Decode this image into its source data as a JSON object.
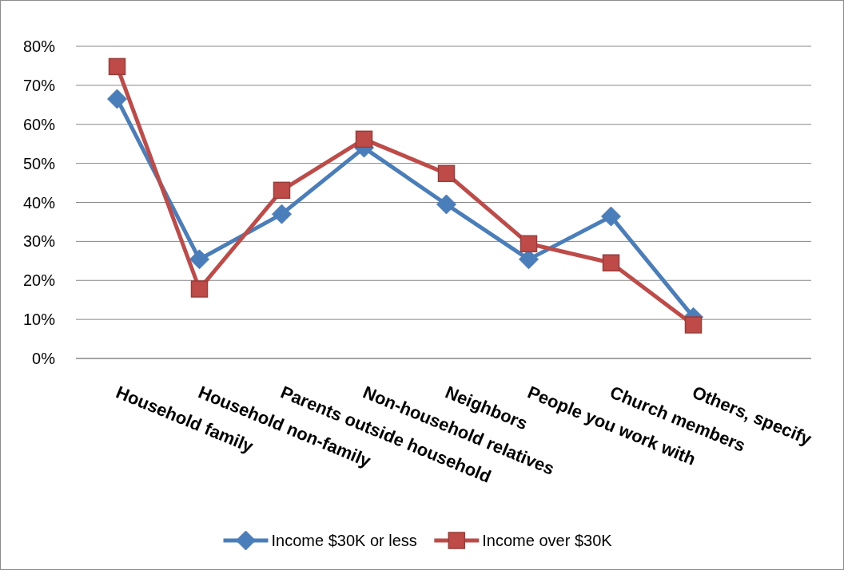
{
  "chart_data": {
    "type": "line",
    "categories": [
      "Household family",
      "Household non-family",
      "Parents outside household",
      "Non-household relatives",
      "Neighbors",
      "People you work with",
      "Church members",
      "Others, specify"
    ],
    "series": [
      {
        "name": "Income $30K or less",
        "color": "#4a7ebb",
        "marker": "diamond",
        "values": [
          66.5,
          25.4,
          37,
          54,
          39.5,
          25.4,
          36.4,
          10.6
        ]
      },
      {
        "name": "Income over $30K",
        "color": "#be4b48",
        "marker": "square",
        "values": [
          74.8,
          17.8,
          43.1,
          56.2,
          47.4,
          29.4,
          24.5,
          8.6
        ]
      }
    ],
    "ylim": [
      0,
      80
    ],
    "yticks": [
      {
        "value": 0,
        "label": "0%"
      },
      {
        "value": 10,
        "label": "10%"
      },
      {
        "value": 20,
        "label": "20%"
      },
      {
        "value": 30,
        "label": "30%"
      },
      {
        "value": 40,
        "label": "40%"
      },
      {
        "value": 50,
        "label": "50%"
      },
      {
        "value": 60,
        "label": "60%"
      },
      {
        "value": 70,
        "label": "70%"
      },
      {
        "value": 80,
        "label": "80%"
      }
    ],
    "grid": "y",
    "legend": "bottom"
  }
}
